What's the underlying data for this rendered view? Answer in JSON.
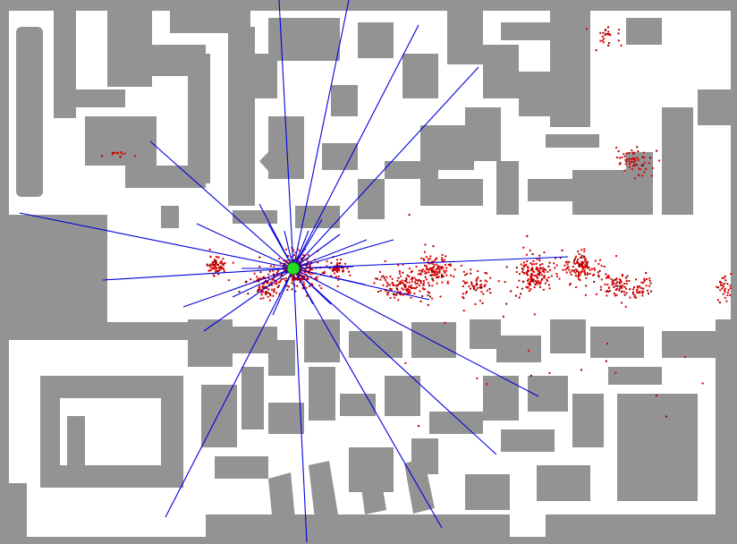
{
  "map": {
    "colors": {
      "wall": "#939393",
      "free": "#ffffff",
      "laser_ray": "#0000dd",
      "particle": "#e00000",
      "particle_dense": "#8a0000",
      "robot": "#22dd22",
      "robot_outline": "#0a5a0a"
    },
    "robot": {
      "label": "robot-pose"
    },
    "laser": {
      "ray_count": 32
    },
    "particle_clusters": [
      {
        "name": "cluster-robot",
        "n": 260
      },
      {
        "name": "cluster-left-a",
        "n": 70
      },
      {
        "name": "cluster-left-b",
        "n": 90
      },
      {
        "name": "cluster-right-a",
        "n": 50
      },
      {
        "name": "cluster-corridor-1",
        "n": 150
      },
      {
        "name": "cluster-corridor-2",
        "n": 110
      },
      {
        "name": "cluster-corridor-3",
        "n": 60
      },
      {
        "name": "cluster-corridor-4",
        "n": 140
      },
      {
        "name": "cluster-corridor-5",
        "n": 120
      },
      {
        "name": "cluster-corridor-6",
        "n": 70
      },
      {
        "name": "cluster-corridor-7",
        "n": 40
      },
      {
        "name": "cluster-edge",
        "n": 30
      },
      {
        "name": "cluster-top-right",
        "n": 25
      },
      {
        "name": "cluster-room-right",
        "n": 60
      },
      {
        "name": "cluster-top-left",
        "n": 12
      },
      {
        "name": "cluster-scatter",
        "n": 40
      }
    ]
  }
}
